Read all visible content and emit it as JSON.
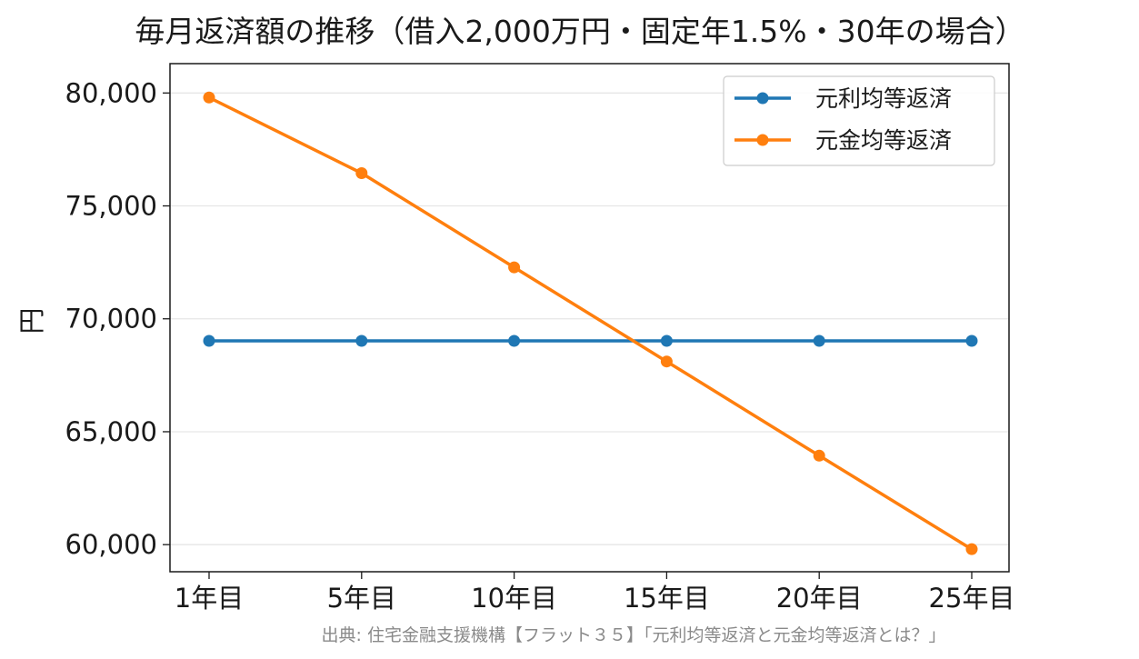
{
  "chart_data": {
    "type": "line",
    "title": "毎月返済額の推移（借入2,000万円・固定年1.5%・30年の場合）",
    "xlabel": "",
    "ylabel": "円",
    "categories": [
      "1年目",
      "5年目",
      "10年目",
      "15年目",
      "20年目",
      "25年目"
    ],
    "series": [
      {
        "name": "元利均等返済",
        "color": "#1f77b4",
        "values": [
          69024,
          69024,
          69024,
          69024,
          69024,
          69024
        ]
      },
      {
        "name": "元金均等返済",
        "color": "#ff7f0e",
        "values": [
          79800,
          76450,
          72280,
          68110,
          63940,
          59800
        ]
      }
    ],
    "ylim": [
      58800,
      81300
    ],
    "yticks": [
      60000,
      65000,
      70000,
      75000,
      80000
    ],
    "ytick_labels": [
      "60,000",
      "65,000",
      "70,000",
      "75,000",
      "80,000"
    ],
    "grid": "y",
    "legend_position": "top-right",
    "source": "出典: 住宅金融支援機構【フラット３５】「元利均等返済と元金均等返済とは？」"
  }
}
